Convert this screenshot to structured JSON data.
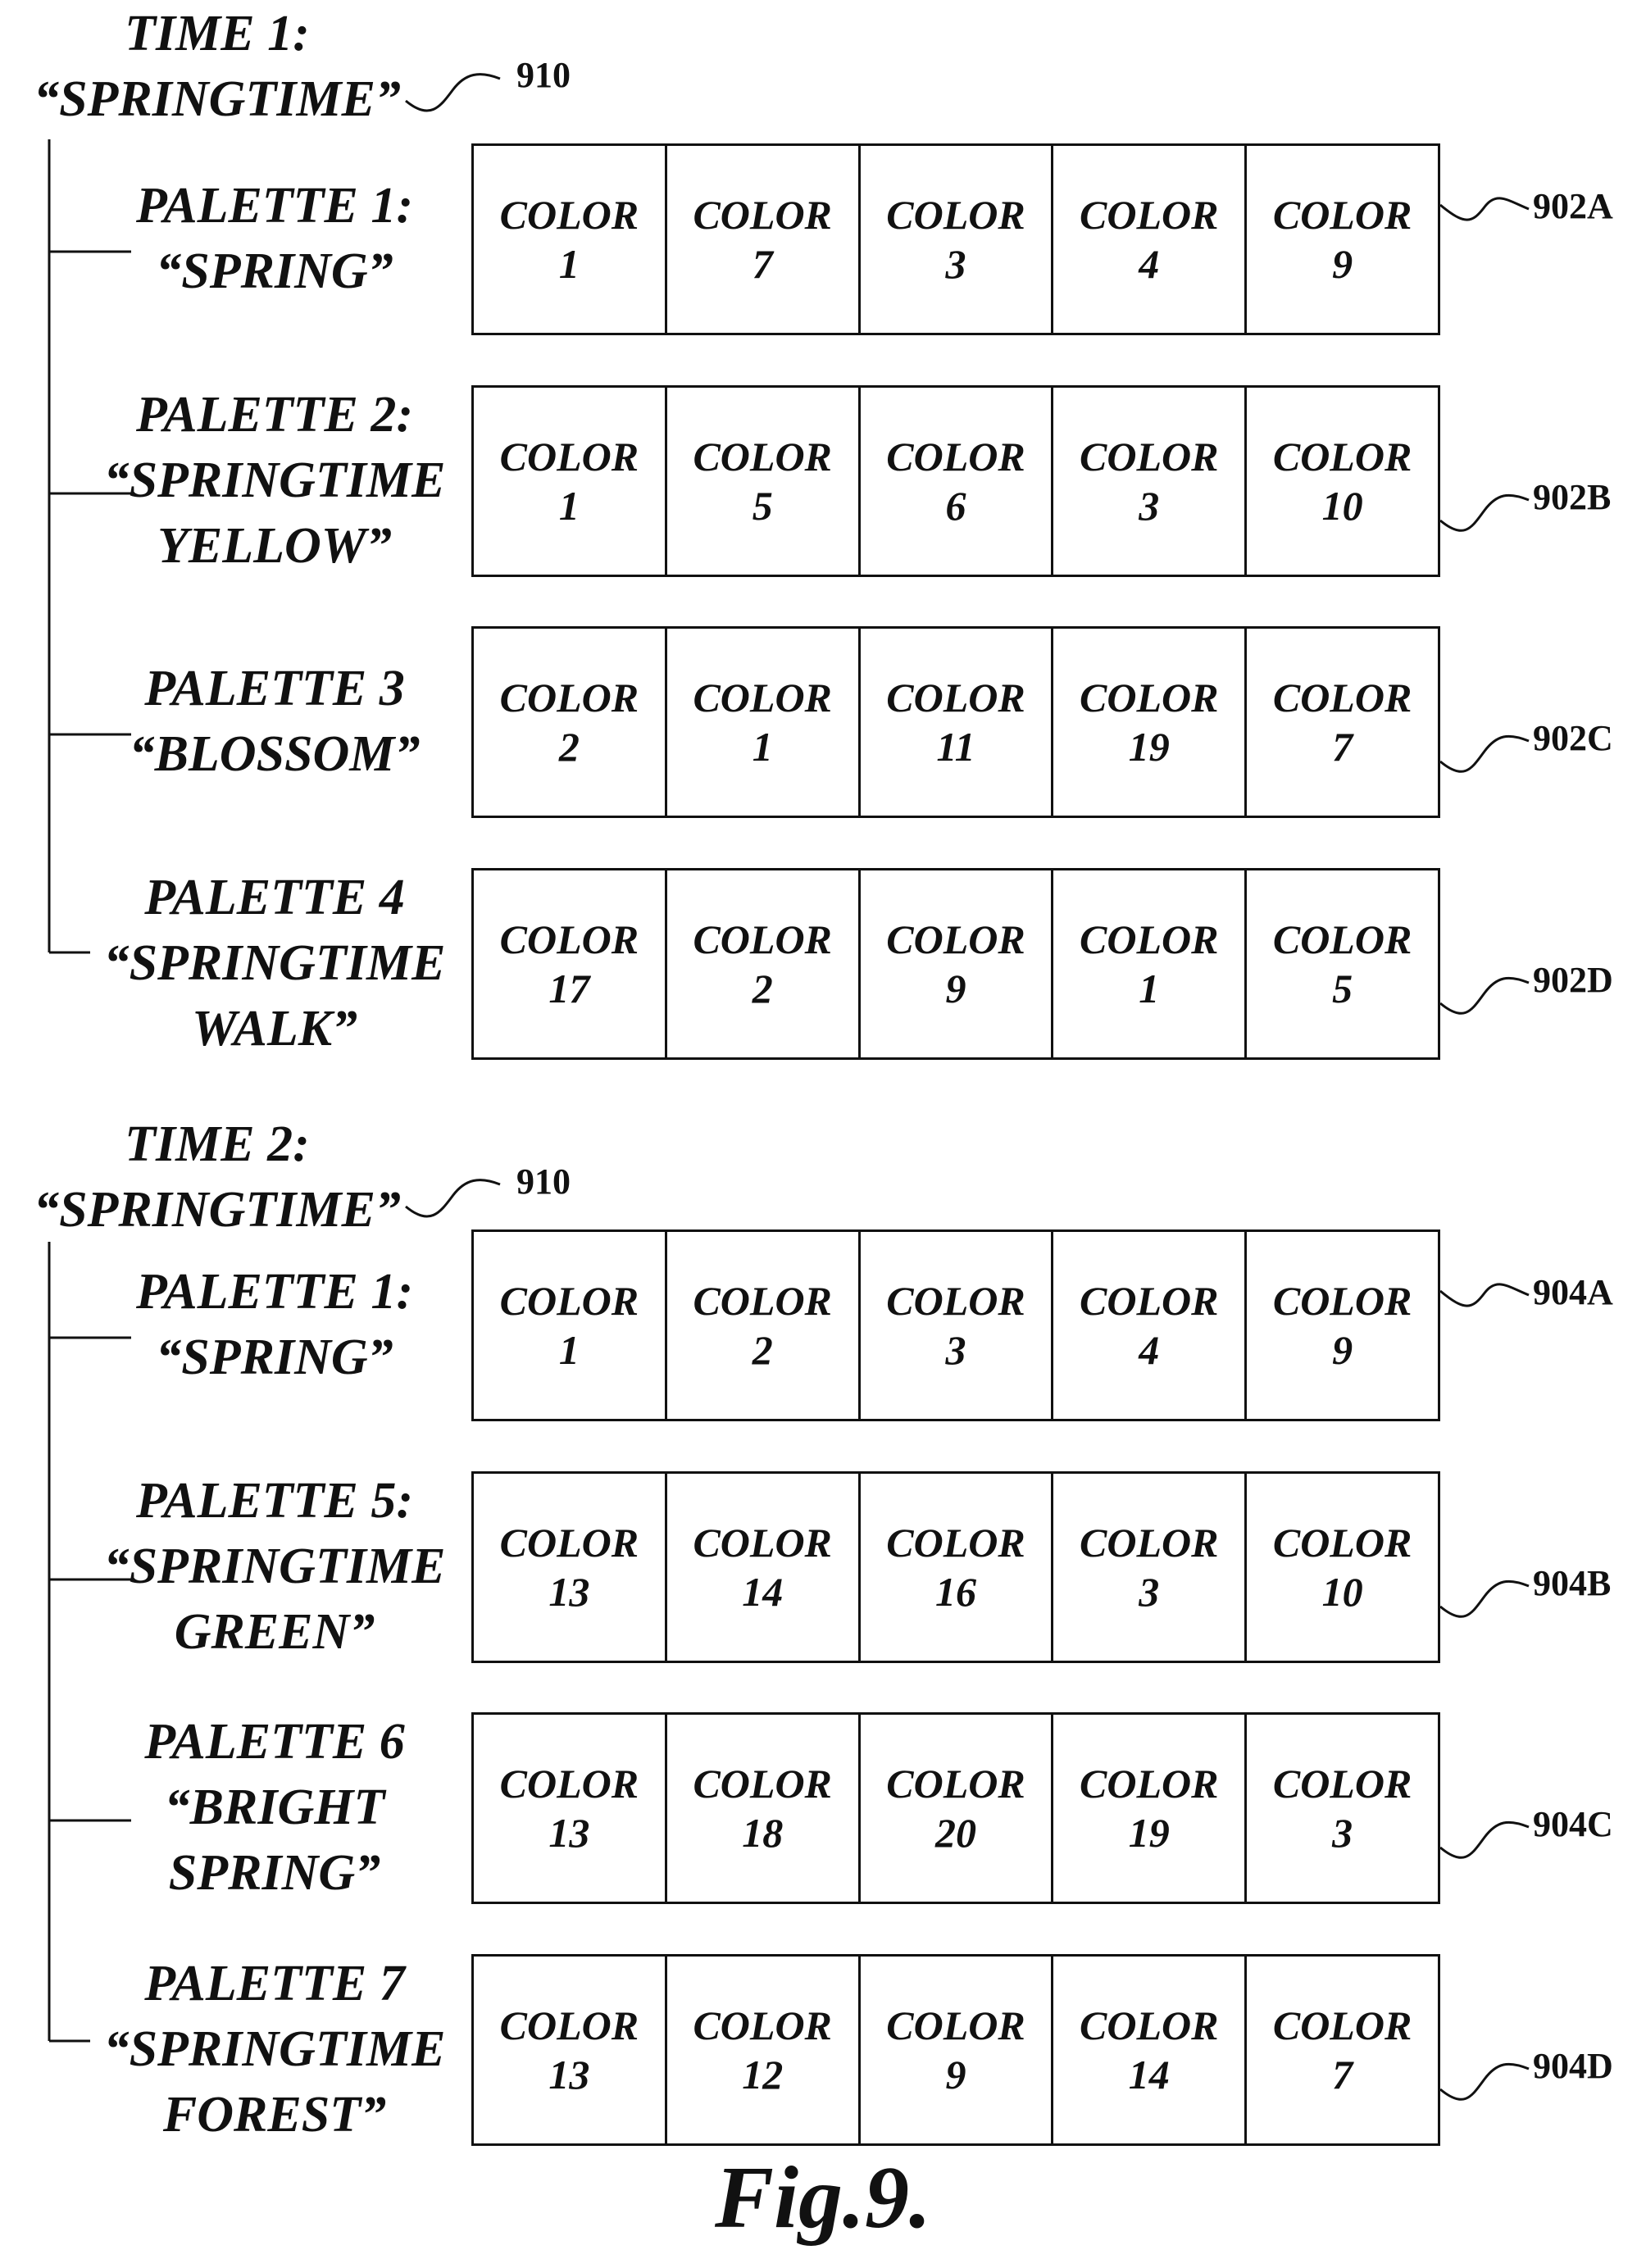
{
  "groups": [
    {
      "title_line1": "TIME 1:",
      "title_line2": "“SPRINGTIME”",
      "ref": "910",
      "palettes": [
        {
          "label_lines": [
            "PALETTE 1:",
            "“SPRING”"
          ],
          "ref": "902A",
          "colors": [
            {
              "word": "COLOR",
              "num": "1"
            },
            {
              "word": "COLOR",
              "num": "7"
            },
            {
              "word": "COLOR",
              "num": "3"
            },
            {
              "word": "COLOR",
              "num": "4"
            },
            {
              "word": "COLOR",
              "num": "9"
            }
          ]
        },
        {
          "label_lines": [
            "PALETTE 2:",
            "“SPRINGTIME",
            "YELLOW”"
          ],
          "ref": "902B",
          "colors": [
            {
              "word": "COLOR",
              "num": "1"
            },
            {
              "word": "COLOR",
              "num": "5"
            },
            {
              "word": "COLOR",
              "num": "6"
            },
            {
              "word": "COLOR",
              "num": "3"
            },
            {
              "word": "COLOR",
              "num": "10"
            }
          ]
        },
        {
          "label_lines": [
            "PALETTE 3",
            "“BLOSSOM”"
          ],
          "ref": "902C",
          "colors": [
            {
              "word": "COLOR",
              "num": "2"
            },
            {
              "word": "COLOR",
              "num": "1"
            },
            {
              "word": "COLOR",
              "num": "11"
            },
            {
              "word": "COLOR",
              "num": "19"
            },
            {
              "word": "COLOR",
              "num": "7"
            }
          ]
        },
        {
          "label_lines": [
            "PALETTE 4",
            "“SPRINGTIME",
            "WALK”"
          ],
          "ref": "902D",
          "colors": [
            {
              "word": "COLOR",
              "num": "17"
            },
            {
              "word": "COLOR",
              "num": "2"
            },
            {
              "word": "COLOR",
              "num": "9"
            },
            {
              "word": "COLOR",
              "num": "1"
            },
            {
              "word": "COLOR",
              "num": "5"
            }
          ]
        }
      ]
    },
    {
      "title_line1": "TIME 2:",
      "title_line2": "“SPRINGTIME”",
      "ref": "910",
      "palettes": [
        {
          "label_lines": [
            "PALETTE 1:",
            "“SPRING”"
          ],
          "ref": "904A",
          "colors": [
            {
              "word": "COLOR",
              "num": "1"
            },
            {
              "word": "COLOR",
              "num": "2"
            },
            {
              "word": "COLOR",
              "num": "3"
            },
            {
              "word": "COLOR",
              "num": "4"
            },
            {
              "word": "COLOR",
              "num": "9"
            }
          ]
        },
        {
          "label_lines": [
            "PALETTE 5:",
            "“SPRINGTIME",
            "GREEN”"
          ],
          "ref": "904B",
          "colors": [
            {
              "word": "COLOR",
              "num": "13"
            },
            {
              "word": "COLOR",
              "num": "14"
            },
            {
              "word": "COLOR",
              "num": "16"
            },
            {
              "word": "COLOR",
              "num": "3"
            },
            {
              "word": "COLOR",
              "num": "10"
            }
          ]
        },
        {
          "label_lines": [
            "PALETTE 6",
            "“BRIGHT",
            "SPRING”"
          ],
          "ref": "904C",
          "colors": [
            {
              "word": "COLOR",
              "num": "13"
            },
            {
              "word": "COLOR",
              "num": "18"
            },
            {
              "word": "COLOR",
              "num": "20"
            },
            {
              "word": "COLOR",
              "num": "19"
            },
            {
              "word": "COLOR",
              "num": "3"
            }
          ]
        },
        {
          "label_lines": [
            "PALETTE 7",
            "“SPRINGTIME",
            "FOREST”"
          ],
          "ref": "904D",
          "colors": [
            {
              "word": "COLOR",
              "num": "13"
            },
            {
              "word": "COLOR",
              "num": "12"
            },
            {
              "word": "COLOR",
              "num": "9"
            },
            {
              "word": "COLOR",
              "num": "14"
            },
            {
              "word": "COLOR",
              "num": "7"
            }
          ]
        }
      ]
    }
  ],
  "figure_caption": "Fig.9."
}
